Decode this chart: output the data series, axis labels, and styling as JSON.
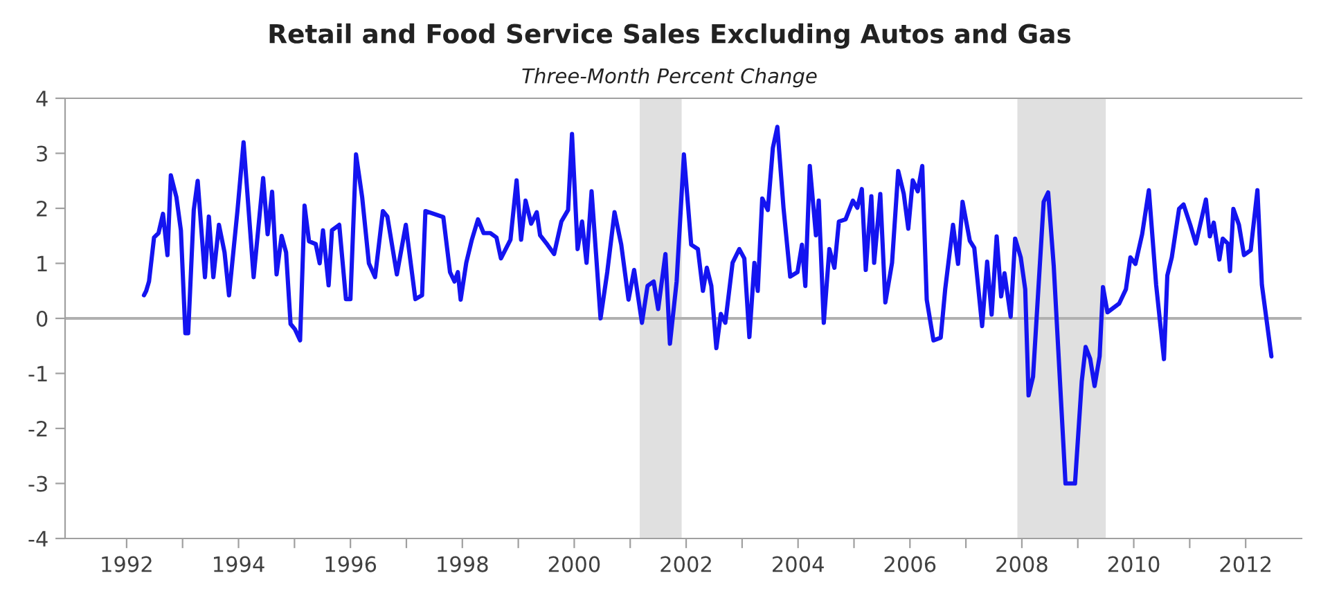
{
  "chart_data": {
    "type": "line",
    "title": "Retail and Food Service Sales Excluding Autos and Gas",
    "subtitle": "Three-Month Percent Change",
    "xlim": [
      1990.9,
      2013
    ],
    "ylim": [
      -4,
      4
    ],
    "yticks": [
      -4,
      -3,
      -2,
      -1,
      0,
      1,
      2,
      3,
      4
    ],
    "xticks": [
      1992,
      {
        "value": 1993,
        "label": null
      },
      1994,
      {
        "value": 1995,
        "label": null
      },
      1996,
      {
        "value": 1997,
        "label": null
      },
      1998,
      {
        "value": 1999,
        "label": null
      },
      2000,
      {
        "value": 2001,
        "label": null
      },
      2002,
      {
        "value": 2003,
        "label": null
      },
      2004,
      {
        "value": 2005,
        "label": null
      },
      2006,
      {
        "value": 2007,
        "label": null
      },
      2008,
      {
        "value": 2009,
        "label": null
      },
      2010,
      {
        "value": 2011,
        "label": null
      },
      2012
    ],
    "grid": false,
    "legend": false,
    "marker": "none",
    "line_style": "solid",
    "ref_lines": [
      {
        "axis": "y",
        "value": 0,
        "color": "#b0b0b0"
      }
    ],
    "bands": [
      {
        "axis": "x",
        "from": 2001.17,
        "to": 2001.92,
        "color": "#e0e0e0"
      },
      {
        "axis": "x",
        "from": 2007.92,
        "to": 2009.5,
        "color": "#e0e0e0"
      }
    ],
    "series": [
      {
        "color": "#1414f0",
        "x": [
          1992.31,
          1992.35,
          1992.4,
          1992.49,
          1992.57,
          1992.65,
          1992.73,
          1992.79,
          1992.89,
          1992.97,
          1993.05,
          1993.1,
          1993.2,
          1993.27,
          1993.4,
          1993.47,
          1993.55,
          1993.65,
          1993.75,
          1993.83,
          1993.98,
          1994.09,
          1994.27,
          1994.44,
          1994.52,
          1994.6,
          1994.68,
          1994.77,
          1994.85,
          1994.93,
          1995.01,
          1995.1,
          1995.18,
          1995.26,
          1995.38,
          1995.45,
          1995.51,
          1995.61,
          1995.67,
          1995.8,
          1995.92,
          1996.0,
          1996.1,
          1996.21,
          1996.33,
          1996.44,
          1996.58,
          1996.66,
          1996.83,
          1996.99,
          1997.16,
          1997.28,
          1997.34,
          1997.66,
          1997.78,
          1997.86,
          1997.92,
          1997.97,
          1998.07,
          1998.17,
          1998.28,
          1998.38,
          1998.5,
          1998.61,
          1998.69,
          1998.86,
          1998.97,
          1999.05,
          1999.13,
          1999.23,
          1999.33,
          1999.39,
          1999.52,
          1999.64,
          1999.77,
          1999.89,
          1999.96,
          2000.06,
          2000.14,
          2000.22,
          2000.31,
          2000.39,
          2000.47,
          2000.59,
          2000.72,
          2000.84,
          2000.97,
          2001.07,
          2001.21,
          2001.31,
          2001.42,
          2001.5,
          2001.63,
          2001.71,
          2001.83,
          2001.96,
          2002.09,
          2002.21,
          2002.3,
          2002.37,
          2002.45,
          2002.54,
          2002.62,
          2002.7,
          2002.83,
          2002.95,
          2003.04,
          2003.13,
          2003.22,
          2003.28,
          2003.36,
          2003.46,
          2003.55,
          2003.63,
          2003.74,
          2003.86,
          2003.99,
          2004.07,
          2004.13,
          2004.21,
          2004.32,
          2004.37,
          2004.46,
          2004.56,
          2004.65,
          2004.73,
          2004.85,
          2004.98,
          2005.06,
          2005.14,
          2005.21,
          2005.31,
          2005.36,
          2005.47,
          2005.56,
          2005.68,
          2005.79,
          2005.89,
          2005.97,
          2006.05,
          2006.14,
          2006.22,
          2006.3,
          2006.42,
          2006.55,
          2006.63,
          2006.77,
          2006.86,
          2006.94,
          2007.07,
          2007.15,
          2007.29,
          2007.38,
          2007.46,
          2007.55,
          2007.63,
          2007.69,
          2007.8,
          2007.88,
          2007.98,
          2008.06,
          2008.12,
          2008.2,
          2008.39,
          2008.47,
          2008.57,
          2008.78,
          2008.95,
          2009.07,
          2009.14,
          2009.22,
          2009.3,
          2009.39,
          2009.45,
          2009.53,
          2009.74,
          2009.86,
          2009.94,
          2010.03,
          2010.15,
          2010.27,
          2010.4,
          2010.54,
          2010.6,
          2010.68,
          2010.81,
          2010.89,
          2011.01,
          2011.11,
          2011.29,
          2011.36,
          2011.43,
          2011.53,
          2011.59,
          2011.68,
          2011.72,
          2011.78,
          2011.88,
          2011.97,
          2012.09,
          2012.21,
          2012.29,
          2012.46
        ],
        "values": [
          0.42,
          0.5,
          0.67,
          1.47,
          1.55,
          1.9,
          1.15,
          2.6,
          2.2,
          1.6,
          -0.27,
          -0.27,
          1.97,
          2.5,
          0.75,
          1.85,
          0.75,
          1.7,
          1.2,
          0.42,
          1.95,
          3.2,
          0.75,
          2.55,
          1.53,
          2.3,
          0.8,
          1.5,
          1.2,
          -0.1,
          -0.2,
          -0.4,
          2.05,
          1.4,
          1.35,
          1.0,
          1.6,
          0.6,
          1.6,
          1.7,
          0.35,
          0.35,
          2.98,
          2.2,
          1.0,
          0.75,
          1.95,
          1.85,
          0.8,
          1.7,
          0.35,
          0.42,
          1.95,
          1.84,
          0.84,
          0.67,
          0.84,
          0.34,
          1.01,
          1.43,
          1.8,
          1.55,
          1.55,
          1.47,
          1.09,
          1.43,
          2.51,
          1.43,
          2.14,
          1.72,
          1.93,
          1.51,
          1.34,
          1.17,
          1.76,
          1.97,
          3.35,
          1.26,
          1.76,
          1.01,
          2.31,
          1.17,
          0.0,
          0.84,
          1.93,
          1.34,
          0.34,
          0.88,
          -0.08,
          0.59,
          0.67,
          0.17,
          1.17,
          -0.46,
          0.67,
          2.98,
          1.34,
          1.26,
          0.5,
          0.92,
          0.59,
          -0.54,
          0.08,
          -0.08,
          1.01,
          1.26,
          1.09,
          -0.34,
          1.01,
          0.5,
          2.18,
          1.97,
          3.1,
          3.48,
          2.01,
          0.76,
          0.84,
          1.34,
          0.59,
          2.77,
          1.51,
          2.14,
          -0.08,
          1.26,
          0.92,
          1.76,
          1.8,
          2.14,
          2.01,
          2.35,
          0.88,
          2.22,
          1.01,
          2.26,
          0.29,
          1.01,
          2.68,
          2.26,
          1.63,
          2.51,
          2.31,
          2.77,
          0.34,
          -0.4,
          -0.35,
          0.53,
          1.7,
          0.99,
          2.12,
          1.41,
          1.28,
          -0.14,
          1.03,
          0.07,
          1.49,
          0.4,
          0.82,
          0.03,
          1.45,
          1.11,
          0.53,
          -1.4,
          -1.06,
          2.12,
          2.29,
          0.95,
          -3.0,
          -3.0,
          -1.15,
          -0.52,
          -0.73,
          -1.23,
          -0.69,
          0.57,
          0.11,
          0.27,
          0.53,
          1.11,
          0.99,
          1.53,
          2.33,
          0.61,
          -0.74,
          0.78,
          1.11,
          1.99,
          2.07,
          1.7,
          1.36,
          2.16,
          1.49,
          1.74,
          1.07,
          1.45,
          1.36,
          0.86,
          1.99,
          1.7,
          1.15,
          1.24,
          2.33,
          0.61,
          -0.69
        ]
      }
    ]
  }
}
